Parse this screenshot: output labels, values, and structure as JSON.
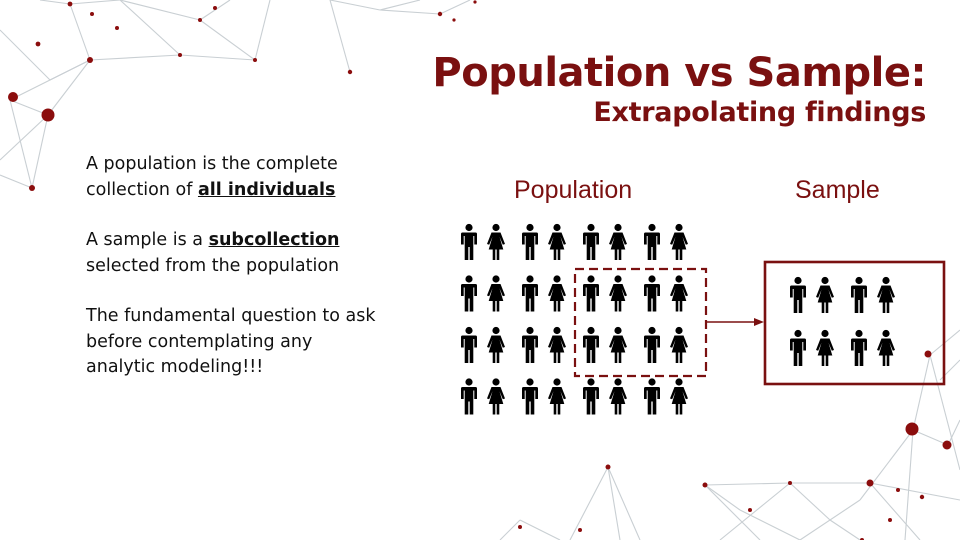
{
  "title": {
    "line1": "Population vs Sample:",
    "line2": "Extrapolating findings"
  },
  "text": {
    "p1_a": "A population is the complete collection of ",
    "p1_em": "all individuals",
    "p2_a": "A sample is a ",
    "p2_em": "subcollection",
    "p2_b": " selected from the population",
    "p3": "The fundamental  question to ask before contemplating  any analytic modeling!!!"
  },
  "diagram": {
    "population_label": "Population",
    "sample_label": "Sample",
    "population_rows": 4,
    "population_cols": 8,
    "sample_rows": 2,
    "sample_cols": 4,
    "colors": {
      "accent": "#7a1010",
      "figure": "#000000",
      "network_line": "#c9cfd3",
      "network_dot": "#8b0d0d"
    }
  }
}
